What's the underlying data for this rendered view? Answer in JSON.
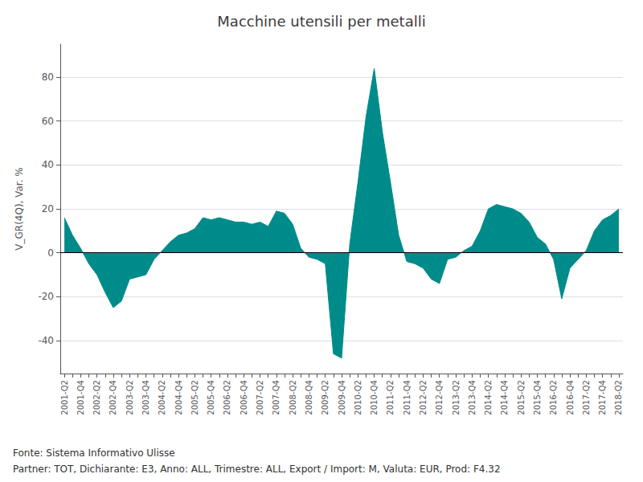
{
  "chart_data": {
    "type": "area",
    "title": "Macchine utensili per metalli",
    "ylabel": "V_GR(4Q), Var. %",
    "annotations": [
      "Fonte: Sistema Informativo Ulisse",
      "Partner: TOT, Dichiarante: E3, Anno: ALL, Trimestre: ALL, Export / Import: M, Valuta: EUR, Prod: F4.32"
    ],
    "categories": [
      "2001-Q2",
      null,
      "2001-Q4",
      null,
      "2002-Q2",
      null,
      "2002-Q4",
      null,
      "2003-Q2",
      null,
      "2003-Q4",
      null,
      "2004-Q2",
      null,
      "2004-Q4",
      null,
      "2005-Q2",
      null,
      "2005-Q4",
      null,
      "2006-Q2",
      null,
      "2006-Q4",
      null,
      "2007-Q2",
      null,
      "2007-Q4",
      null,
      "2008-Q2",
      null,
      "2008-Q4",
      null,
      "2009-Q2",
      null,
      "2009-Q4",
      null,
      "2010-Q2",
      null,
      "2010-Q4",
      null,
      "2011-Q2",
      null,
      "2011-Q4",
      null,
      "2012-Q2",
      null,
      "2012-Q4",
      null,
      "2013-Q2",
      null,
      "2013-Q4",
      null,
      "2014-Q2",
      null,
      "2014-Q4",
      null,
      "2015-Q2",
      null,
      "2015-Q4",
      null,
      "2016-Q2",
      null,
      "2016-Q4",
      null,
      "2017-Q2",
      null,
      "2017-Q4",
      null,
      "2018-Q2"
    ],
    "values": [
      16,
      8,
      2,
      -5,
      -10,
      -18,
      -25,
      -22,
      -12,
      -11,
      -10,
      -3,
      1,
      5,
      8,
      9,
      11,
      16,
      15,
      16,
      15,
      14,
      14,
      13,
      14,
      12,
      19,
      18,
      13,
      2,
      -2,
      -3,
      -5,
      -46,
      -48,
      4,
      32,
      62,
      84,
      55,
      32,
      8,
      -4,
      -5,
      -7,
      -12,
      -14,
      -3,
      -2,
      1,
      3,
      10,
      20,
      22,
      21,
      20,
      18,
      14,
      7,
      4,
      -3,
      -21,
      -7,
      -3,
      1,
      10,
      15,
      17,
      20
    ],
    "color": "#008B8B",
    "ylim": [
      -55,
      95
    ],
    "yticks": [
      -40,
      -20,
      0,
      20,
      40,
      60,
      80
    ],
    "grid": true
  }
}
